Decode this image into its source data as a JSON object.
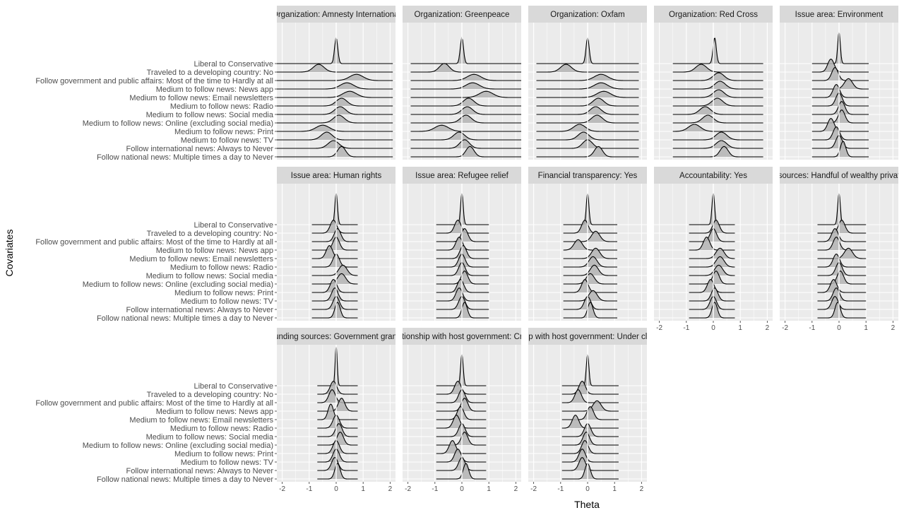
{
  "chart_data": {
    "type": "ridgeline",
    "facet_layout": {
      "rows": 3,
      "cols": 5
    },
    "xlabel": "Theta",
    "ylabel": "Covariates",
    "x_ticks": [
      -2,
      -1,
      0,
      1,
      2
    ],
    "xlim": [
      -2.2,
      2.2
    ],
    "reference_line_x": 0,
    "colors": {
      "panel_bg": "#ebebeb",
      "strip_bg": "#d9d9d9",
      "grid": "#ffffff",
      "fill": "#b3b3b3",
      "line": "#000000"
    },
    "covariates": [
      "Liberal to Conservative",
      "Traveled to a developing country: No",
      "Follow government and public affairs: Most of the time to Hardly at all",
      "Medium to follow news: News app",
      "Medium to follow news: Email newsletters",
      "Medium to follow news: Radio",
      "Medium to follow news: Social media",
      "Medium to follow news: Online (excluding social media)",
      "Medium to follow news: Print",
      "Medium to follow news: TV",
      "Follow international news: Always to Never",
      "Follow national news: Multiple times a day to Never"
    ],
    "panels": [
      {
        "title": "Organization: Amnesty International",
        "x_range": [
          -2.2,
          2.1
        ],
        "ridges": [
          {
            "m": 0,
            "s": 0.06
          },
          {
            "m": -0.65,
            "s": 0.2
          },
          {
            "m": 0.75,
            "s": 0.25
          },
          {
            "m": 0.4,
            "s": 0.25
          },
          {
            "m": 0.5,
            "s": 0.25
          },
          {
            "m": 0.2,
            "s": 0.2
          },
          {
            "m": 0.15,
            "s": 0.2
          },
          {
            "m": 0.1,
            "s": 0.2
          },
          {
            "m": -0.5,
            "s": 0.25
          },
          {
            "m": -0.35,
            "s": 0.2
          },
          {
            "m": -0.1,
            "s": 0.2
          },
          {
            "m": 0.2,
            "s": 0.15
          }
        ]
      },
      {
        "title": "Organization: Greenpeace",
        "x_range": [
          -1.9,
          2.3
        ],
        "ridges": [
          {
            "m": 0,
            "s": 0.06
          },
          {
            "m": -0.65,
            "s": 0.18
          },
          {
            "m": 0.45,
            "s": 0.25
          },
          {
            "m": 0.4,
            "s": 0.25
          },
          {
            "m": 0.9,
            "s": 0.25
          },
          {
            "m": 0.25,
            "s": 0.2
          },
          {
            "m": 0.2,
            "s": 0.2
          },
          {
            "m": 0.15,
            "s": 0.2
          },
          {
            "m": -0.75,
            "s": 0.25
          },
          {
            "m": -0.1,
            "s": 0.2
          },
          {
            "m": 0.1,
            "s": 0.18
          },
          {
            "m": 0.3,
            "s": 0.15
          }
        ]
      },
      {
        "title": "Organization: Oxfam",
        "x_range": [
          -1.9,
          1.9
        ],
        "ridges": [
          {
            "m": 0,
            "s": 0.06
          },
          {
            "m": -0.8,
            "s": 0.2
          },
          {
            "m": 0.5,
            "s": 0.25
          },
          {
            "m": 0.5,
            "s": 0.25
          },
          {
            "m": 0.6,
            "s": 0.25
          },
          {
            "m": 0.4,
            "s": 0.2
          },
          {
            "m": 0.3,
            "s": 0.2
          },
          {
            "m": 0.35,
            "s": 0.2
          },
          {
            "m": -0.3,
            "s": 0.22
          },
          {
            "m": -0.15,
            "s": 0.2
          },
          {
            "m": 0,
            "s": 0.18
          },
          {
            "m": 0.4,
            "s": 0.15
          }
        ]
      },
      {
        "title": "Organization: Red Cross",
        "x_range": [
          -1.5,
          1.85
        ],
        "ridges": [
          {
            "m": 0.05,
            "s": 0.06
          },
          {
            "m": -0.45,
            "s": 0.2
          },
          {
            "m": 0.2,
            "s": 0.2
          },
          {
            "m": 0.25,
            "s": 0.2
          },
          {
            "m": 0.2,
            "s": 0.2
          },
          {
            "m": 0.15,
            "s": 0.2
          },
          {
            "m": -0.3,
            "s": 0.2
          },
          {
            "m": -0.2,
            "s": 0.2
          },
          {
            "m": -0.7,
            "s": 0.22
          },
          {
            "m": 0.3,
            "s": 0.2
          },
          {
            "m": 0.3,
            "s": 0.2
          },
          {
            "m": 0.4,
            "s": 0.15
          }
        ]
      },
      {
        "title": "Issue area: Environment",
        "x_range": [
          -1.0,
          1.1
        ],
        "ridges": [
          {
            "m": 0,
            "s": 0.05
          },
          {
            "m": -0.3,
            "s": 0.12
          },
          {
            "m": -0.15,
            "s": 0.12
          },
          {
            "m": 0.35,
            "s": 0.15
          },
          {
            "m": -0.1,
            "s": 0.12
          },
          {
            "m": 0,
            "s": 0.12
          },
          {
            "m": 0.1,
            "s": 0.12
          },
          {
            "m": 0.1,
            "s": 0.12
          },
          {
            "m": -0.3,
            "s": 0.12
          },
          {
            "m": -0.1,
            "s": 0.12
          },
          {
            "m": 0,
            "s": 0.12
          },
          {
            "m": 0.15,
            "s": 0.1
          }
        ]
      },
      {
        "title": "Issue area: Human rights",
        "x_range": [
          -0.9,
          0.8
        ],
        "ridges": [
          {
            "m": 0,
            "s": 0.05
          },
          {
            "m": -0.1,
            "s": 0.12
          },
          {
            "m": 0.05,
            "s": 0.12
          },
          {
            "m": 0,
            "s": 0.12
          },
          {
            "m": -0.25,
            "s": 0.12
          },
          {
            "m": 0,
            "s": 0.12
          },
          {
            "m": 0.25,
            "s": 0.15
          },
          {
            "m": 0.2,
            "s": 0.15
          },
          {
            "m": -0.1,
            "s": 0.12
          },
          {
            "m": -0.05,
            "s": 0.12
          },
          {
            "m": 0,
            "s": 0.12
          },
          {
            "m": 0.05,
            "s": 0.1
          }
        ]
      },
      {
        "title": "Issue area: Refugee relief",
        "x_range": [
          -0.95,
          1.0
        ],
        "ridges": [
          {
            "m": 0,
            "s": 0.05
          },
          {
            "m": -0.15,
            "s": 0.12
          },
          {
            "m": 0.1,
            "s": 0.12
          },
          {
            "m": -0.1,
            "s": 0.12
          },
          {
            "m": 0.05,
            "s": 0.12
          },
          {
            "m": 0,
            "s": 0.12
          },
          {
            "m": 0,
            "s": 0.12
          },
          {
            "m": 0.1,
            "s": 0.12
          },
          {
            "m": -0.05,
            "s": 0.12
          },
          {
            "m": -0.1,
            "s": 0.12
          },
          {
            "m": 0,
            "s": 0.12
          },
          {
            "m": 0.1,
            "s": 0.1
          }
        ]
      },
      {
        "title": "Financial transparency: Yes",
        "x_range": [
          -0.9,
          1.1
        ],
        "ridges": [
          {
            "m": 0,
            "s": 0.05
          },
          {
            "m": -0.1,
            "s": 0.12
          },
          {
            "m": 0.3,
            "s": 0.15
          },
          {
            "m": -0.35,
            "s": 0.15
          },
          {
            "m": 0.3,
            "s": 0.15
          },
          {
            "m": 0.2,
            "s": 0.15
          },
          {
            "m": 0.25,
            "s": 0.15
          },
          {
            "m": 0.1,
            "s": 0.15
          },
          {
            "m": -0.1,
            "s": 0.12
          },
          {
            "m": 0.2,
            "s": 0.15
          },
          {
            "m": 0,
            "s": 0.12
          },
          {
            "m": 0.1,
            "s": 0.1
          }
        ]
      },
      {
        "title": "Accountability: Yes",
        "x_range": [
          -0.9,
          0.8
        ],
        "ridges": [
          {
            "m": 0,
            "s": 0.05
          },
          {
            "m": 0.1,
            "s": 0.12
          },
          {
            "m": 0,
            "s": 0.12
          },
          {
            "m": -0.25,
            "s": 0.12
          },
          {
            "m": 0.25,
            "s": 0.15
          },
          {
            "m": 0.25,
            "s": 0.15
          },
          {
            "m": 0.2,
            "s": 0.15
          },
          {
            "m": 0.1,
            "s": 0.12
          },
          {
            "m": -0.1,
            "s": 0.12
          },
          {
            "m": 0.05,
            "s": 0.12
          },
          {
            "m": 0,
            "s": 0.12
          },
          {
            "m": 0.05,
            "s": 0.1
          }
        ]
      },
      {
        "title": "Funding sources: Handful of wealthy private donors",
        "x_range": [
          -0.8,
          1.0
        ],
        "ridges": [
          {
            "m": 0,
            "s": 0.05
          },
          {
            "m": 0.1,
            "s": 0.12
          },
          {
            "m": -0.15,
            "s": 0.12
          },
          {
            "m": -0.1,
            "s": 0.12
          },
          {
            "m": 0.35,
            "s": 0.15
          },
          {
            "m": -0.1,
            "s": 0.12
          },
          {
            "m": 0,
            "s": 0.12
          },
          {
            "m": 0.05,
            "s": 0.12
          },
          {
            "m": -0.2,
            "s": 0.12
          },
          {
            "m": -0.1,
            "s": 0.12
          },
          {
            "m": -0.15,
            "s": 0.12
          },
          {
            "m": -0.05,
            "s": 0.1
          }
        ]
      },
      {
        "title": "Funding sources: Government grants",
        "x_range": [
          -0.7,
          0.8
        ],
        "ridges": [
          {
            "m": 0,
            "s": 0.04
          },
          {
            "m": -0.1,
            "s": 0.12
          },
          {
            "m": -0.15,
            "s": 0.12
          },
          {
            "m": 0.2,
            "s": 0.12
          },
          {
            "m": -0.2,
            "s": 0.1
          },
          {
            "m": 0,
            "s": 0.12
          },
          {
            "m": 0.1,
            "s": 0.12
          },
          {
            "m": 0.15,
            "s": 0.12
          },
          {
            "m": 0,
            "s": 0.12
          },
          {
            "m": 0,
            "s": 0.12
          },
          {
            "m": -0.05,
            "s": 0.12
          },
          {
            "m": 0.05,
            "s": 0.1
          }
        ]
      },
      {
        "title": "Relationship with host government: Critical",
        "x_range": [
          -0.95,
          0.9
        ],
        "ridges": [
          {
            "m": 0,
            "s": 0.05
          },
          {
            "m": -0.15,
            "s": 0.12
          },
          {
            "m": 0,
            "s": 0.12
          },
          {
            "m": 0.1,
            "s": 0.12
          },
          {
            "m": -0.05,
            "s": 0.12
          },
          {
            "m": -0.2,
            "s": 0.12
          },
          {
            "m": 0,
            "s": 0.12
          },
          {
            "m": 0.1,
            "s": 0.12
          },
          {
            "m": -0.35,
            "s": 0.12
          },
          {
            "m": -0.15,
            "s": 0.12
          },
          {
            "m": 0,
            "s": 0.12
          },
          {
            "m": 0.15,
            "s": 0.1
          }
        ]
      },
      {
        "title": "Relationship with host government: Under close control",
        "x_range": [
          -0.95,
          1.15
        ],
        "ridges": [
          {
            "m": 0,
            "s": 0.05
          },
          {
            "m": -0.2,
            "s": 0.12
          },
          {
            "m": -0.35,
            "s": 0.12
          },
          {
            "m": 0.35,
            "s": 0.15
          },
          {
            "m": 0.1,
            "s": 0.12
          },
          {
            "m": -0.45,
            "s": 0.12
          },
          {
            "m": 0,
            "s": 0.12
          },
          {
            "m": -0.05,
            "s": 0.12
          },
          {
            "m": -0.1,
            "s": 0.12
          },
          {
            "m": -0.2,
            "s": 0.12
          },
          {
            "m": -0.2,
            "s": 0.12
          },
          {
            "m": 0,
            "s": 0.1
          }
        ]
      }
    ]
  }
}
